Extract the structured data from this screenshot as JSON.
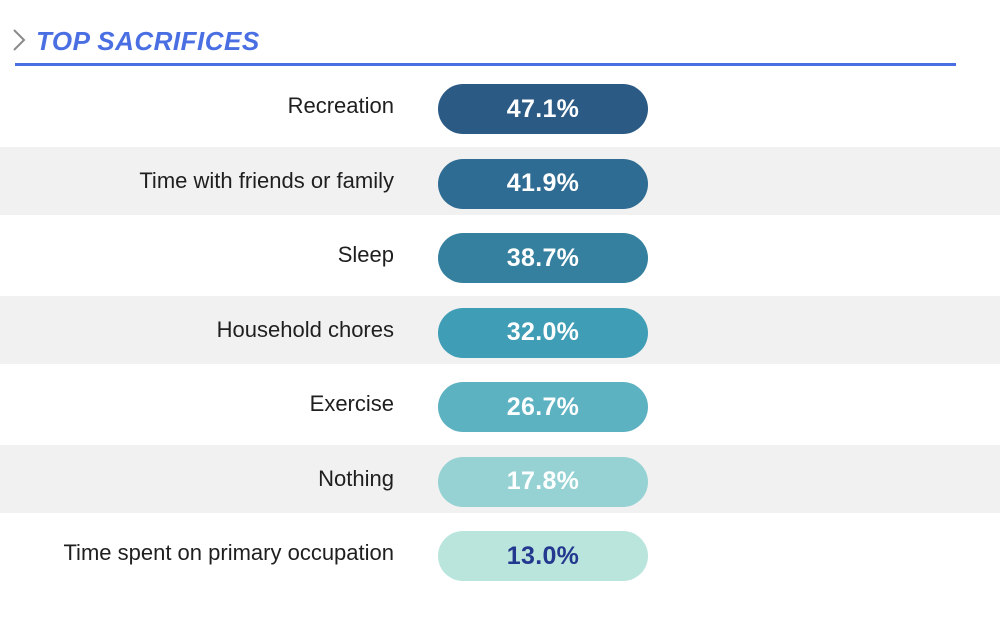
{
  "header": {
    "title": "TOP SACRIFICES",
    "accent_color": "#4a6fe3",
    "icon": "chevron-right-icon"
  },
  "chart_data": {
    "type": "table",
    "title": "TOP SACRIFICES",
    "unit": "%",
    "categories": [
      "Recreation",
      "Time with friends or family",
      "Sleep",
      "Household chores",
      "Exercise",
      "Nothing",
      "Time spent on primary occupation"
    ],
    "values": [
      47.1,
      41.9,
      38.7,
      32.0,
      26.7,
      17.8,
      13.0
    ],
    "value_labels": [
      "47.1%",
      "41.9%",
      "38.7%",
      "32.0%",
      "26.7%",
      "17.8%",
      "13.0%"
    ],
    "pill_colors": [
      "#2b5a85",
      "#2f6c93",
      "#35809f",
      "#3f9db6",
      "#5db2c2",
      "#96d2d3",
      "#b9e5dc"
    ],
    "text_colors": [
      "#ffffff",
      "#ffffff",
      "#ffffff",
      "#ffffff",
      "#ffffff",
      "#ffffff",
      "#23388f"
    ]
  }
}
